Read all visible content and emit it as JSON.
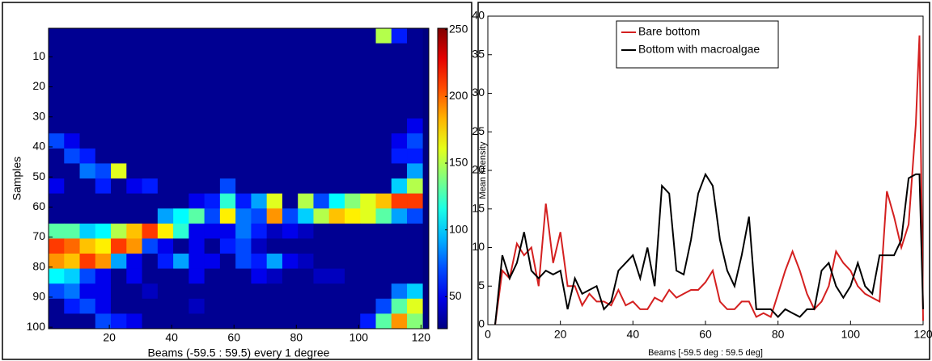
{
  "chart_data": [
    {
      "type": "heatmap",
      "xlabel": "Beams (-59.5 : 59.5) every 1 degree",
      "ylabel": "Samples",
      "xbins": [
        0.5,
        5.5,
        10.5,
        15.5,
        20.5,
        25.5,
        30.5,
        35.5,
        40.5,
        45.5,
        50.5,
        55.5,
        60.5,
        65.5,
        70.5,
        75.5,
        80.5,
        85.5,
        90.5,
        95.5,
        100.5,
        105.5,
        110.5,
        115.5,
        120.5
      ],
      "ybins": [
        0.5,
        5.5,
        10.5,
        15.5,
        20.5,
        25.5,
        30.5,
        35.5,
        40.5,
        45.5,
        50.5,
        55.5,
        60.5,
        65.5,
        70.5,
        75.5,
        80.5,
        85.5,
        90.5,
        95.5,
        100.5
      ],
      "xlim": [
        0.5,
        122.5
      ],
      "ylim": [
        0.5,
        100.5
      ],
      "yreverse": true,
      "xticks": [
        20,
        40,
        60,
        80,
        100,
        120
      ],
      "yticks": [
        10,
        20,
        30,
        40,
        50,
        60,
        70,
        80,
        90,
        100
      ],
      "clim": [
        26,
        251
      ],
      "cticks": [
        50,
        100,
        150,
        200,
        250
      ],
      "colormap": "jet",
      "z": [
        [
          30,
          30,
          30,
          30,
          30,
          30,
          30,
          30,
          30,
          30,
          30,
          30,
          30,
          30,
          30,
          30,
          30,
          30,
          30,
          30,
          30,
          150,
          60,
          30
        ],
        [
          30,
          30,
          30,
          30,
          30,
          30,
          30,
          30,
          30,
          30,
          30,
          30,
          30,
          30,
          30,
          30,
          30,
          30,
          30,
          30,
          30,
          30,
          30,
          30
        ],
        [
          30,
          30,
          30,
          30,
          30,
          30,
          30,
          30,
          30,
          30,
          30,
          30,
          30,
          30,
          30,
          30,
          30,
          30,
          30,
          30,
          30,
          30,
          30,
          30
        ],
        [
          30,
          30,
          30,
          30,
          30,
          30,
          30,
          30,
          30,
          30,
          30,
          30,
          30,
          30,
          30,
          30,
          30,
          30,
          30,
          30,
          30,
          30,
          30,
          30
        ],
        [
          30,
          30,
          30,
          30,
          30,
          30,
          30,
          30,
          30,
          30,
          30,
          30,
          30,
          30,
          30,
          30,
          30,
          30,
          30,
          30,
          30,
          30,
          30,
          30
        ],
        [
          30,
          30,
          30,
          30,
          30,
          30,
          30,
          30,
          30,
          30,
          30,
          30,
          30,
          30,
          30,
          30,
          30,
          30,
          30,
          30,
          30,
          30,
          30,
          30
        ],
        [
          30,
          30,
          30,
          30,
          30,
          30,
          30,
          30,
          30,
          30,
          30,
          30,
          30,
          30,
          30,
          30,
          30,
          30,
          30,
          30,
          30,
          30,
          30,
          50
        ],
        [
          70,
          50,
          30,
          30,
          30,
          30,
          30,
          30,
          30,
          30,
          30,
          30,
          30,
          30,
          30,
          30,
          30,
          30,
          30,
          30,
          30,
          30,
          50,
          70
        ],
        [
          30,
          70,
          60,
          30,
          30,
          30,
          30,
          30,
          30,
          30,
          30,
          30,
          30,
          30,
          30,
          30,
          30,
          30,
          30,
          30,
          30,
          30,
          60,
          60
        ],
        [
          30,
          30,
          80,
          70,
          160,
          30,
          30,
          30,
          30,
          30,
          30,
          30,
          30,
          30,
          30,
          30,
          30,
          30,
          30,
          30,
          30,
          30,
          30,
          90
        ],
        [
          50,
          30,
          30,
          60,
          30,
          50,
          60,
          30,
          30,
          30,
          30,
          70,
          30,
          30,
          30,
          30,
          30,
          30,
          30,
          30,
          30,
          30,
          100,
          150
        ],
        [
          30,
          30,
          30,
          30,
          30,
          30,
          30,
          30,
          30,
          50,
          60,
          120,
          60,
          90,
          160,
          30,
          150,
          70,
          110,
          140,
          160,
          180,
          210,
          210
        ],
        [
          30,
          30,
          30,
          30,
          30,
          30,
          30,
          90,
          110,
          130,
          70,
          170,
          80,
          70,
          190,
          70,
          100,
          150,
          180,
          170,
          160,
          130,
          90,
          70
        ],
        [
          130,
          130,
          100,
          110,
          150,
          180,
          210,
          170,
          120,
          50,
          50,
          50,
          80,
          60,
          40,
          50,
          40,
          30,
          30,
          30,
          30,
          30,
          30,
          30
        ],
        [
          210,
          200,
          180,
          170,
          210,
          190,
          70,
          50,
          30,
          50,
          30,
          60,
          70,
          40,
          30,
          30,
          30,
          30,
          30,
          30,
          30,
          30,
          30,
          30
        ],
        [
          190,
          180,
          210,
          190,
          90,
          50,
          30,
          60,
          90,
          50,
          50,
          30,
          70,
          60,
          90,
          50,
          40,
          30,
          30,
          30,
          30,
          30,
          30,
          30
        ],
        [
          110,
          100,
          70,
          50,
          30,
          50,
          30,
          30,
          30,
          50,
          30,
          30,
          30,
          50,
          40,
          30,
          30,
          40,
          40,
          30,
          30,
          30,
          30,
          30
        ],
        [
          70,
          80,
          50,
          50,
          30,
          30,
          40,
          30,
          30,
          30,
          30,
          30,
          30,
          30,
          30,
          30,
          30,
          30,
          30,
          30,
          30,
          30,
          80,
          100
        ],
        [
          30,
          60,
          70,
          50,
          30,
          30,
          30,
          30,
          30,
          40,
          30,
          30,
          30,
          30,
          30,
          30,
          30,
          30,
          30,
          30,
          30,
          70,
          130,
          160
        ],
        [
          30,
          30,
          30,
          70,
          60,
          50,
          30,
          30,
          30,
          30,
          30,
          30,
          30,
          30,
          30,
          30,
          30,
          30,
          30,
          30,
          60,
          130,
          190,
          140
        ]
      ]
    },
    {
      "type": "line",
      "xlabel": "Beams [-59.5 deg : 59.5 deg]",
      "ylabel": "Mean intensity",
      "xlim": [
        0,
        120
      ],
      "ylim": [
        0,
        40
      ],
      "xticks": [
        0,
        20,
        40,
        60,
        80,
        100,
        120
      ],
      "yticks": [
        0,
        5,
        10,
        15,
        20,
        25,
        30,
        35,
        40
      ],
      "legend": "upper center",
      "x": [
        2,
        4,
        6,
        8,
        10,
        12,
        14,
        16,
        18,
        20,
        22,
        24,
        26,
        28,
        30,
        32,
        34,
        36,
        38,
        40,
        42,
        44,
        46,
        48,
        50,
        52,
        54,
        56,
        58,
        60,
        62,
        64,
        66,
        68,
        70,
        72,
        74,
        76,
        78,
        80,
        82,
        84,
        86,
        88,
        90,
        92,
        94,
        96,
        98,
        100,
        102,
        104,
        106,
        108,
        110,
        112,
        114,
        116,
        118,
        119,
        120
      ],
      "series": [
        {
          "name": "Bare bottom",
          "color": "#d42020",
          "values": [
            0,
            7,
            6,
            10.5,
            9,
            10,
            5,
            15.7,
            8,
            12,
            5,
            5,
            2.5,
            4,
            3,
            3,
            2.5,
            4.5,
            2.5,
            3,
            2,
            2,
            3.5,
            3,
            4.5,
            3.5,
            4,
            4.5,
            4.5,
            5.5,
            7,
            3,
            2,
            2,
            3,
            3,
            1,
            1.5,
            1,
            4,
            7,
            9.5,
            7,
            4,
            2,
            3,
            5,
            9.5,
            8,
            7,
            5,
            4,
            3.5,
            3,
            17.3,
            14,
            10,
            13,
            26,
            37.5,
            0.5
          ]
        },
        {
          "name": "Bottom with macroalgae",
          "color": "#000000",
          "values": [
            0,
            9,
            6,
            8,
            12,
            7,
            6,
            7,
            6.5,
            7,
            2,
            6,
            4,
            4.5,
            5,
            2,
            3,
            7,
            8,
            9,
            6,
            10,
            5,
            18,
            17,
            7,
            6.5,
            11,
            17,
            19.5,
            18,
            11,
            7,
            5,
            9,
            14,
            2,
            2,
            2,
            1,
            2,
            1.5,
            1,
            2,
            2,
            7,
            8,
            5,
            3.5,
            5,
            8,
            5,
            4,
            9,
            9,
            9,
            11,
            19,
            19.5,
            19.5,
            2
          ]
        }
      ]
    }
  ]
}
